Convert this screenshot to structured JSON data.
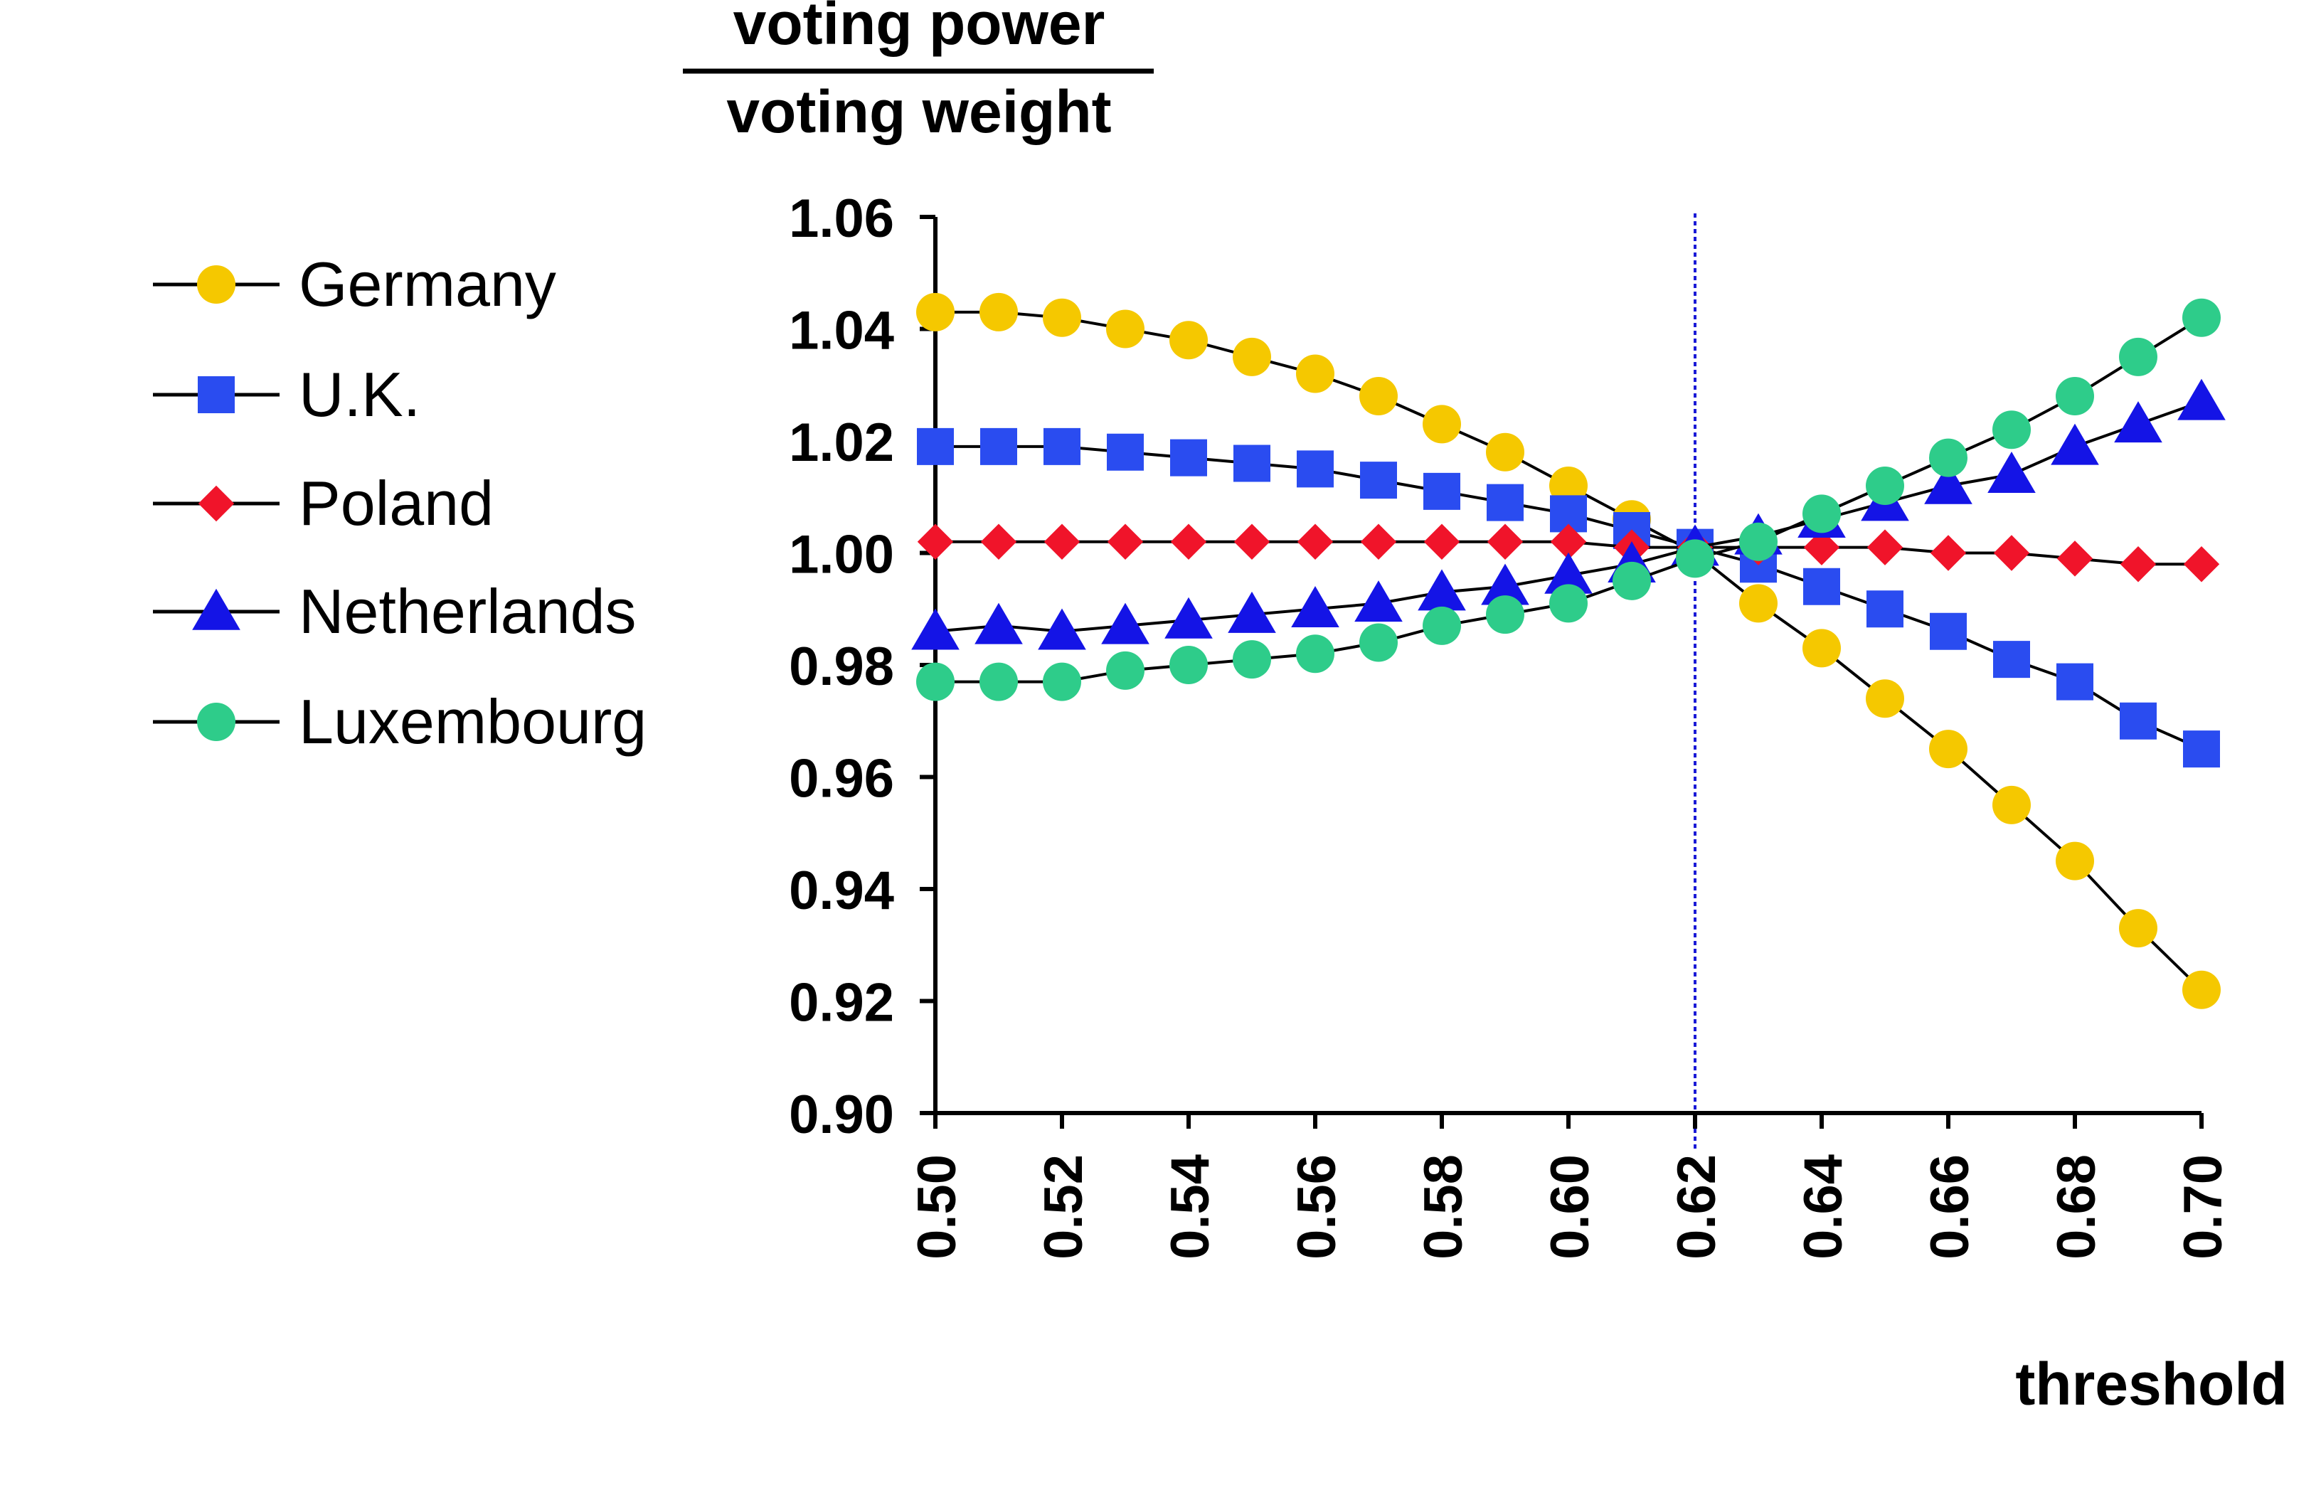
{
  "chart_data": {
    "type": "line",
    "ylabel_numerator": "voting power",
    "ylabel_denominator": "voting weight",
    "xlabel": "threshold",
    "xlim": [
      0.5,
      0.7
    ],
    "ylim": [
      0.9,
      1.06
    ],
    "x_ticks": [
      "0.50",
      "0.52",
      "0.54",
      "0.56",
      "0.58",
      "0.60",
      "0.62",
      "0.64",
      "0.66",
      "0.68",
      "0.70"
    ],
    "y_ticks": [
      "1.06",
      "1.04",
      "1.02",
      "1.00",
      "0.98",
      "0.96",
      "0.94",
      "0.92",
      "0.90"
    ],
    "reference_line": {
      "x": 0.62,
      "color": "#1a1ad6",
      "style": "dotted"
    },
    "grid": false,
    "legend_position": "left",
    "x": [
      0.5,
      0.51,
      0.52,
      0.53,
      0.54,
      0.55,
      0.56,
      0.57,
      0.58,
      0.59,
      0.6,
      0.61,
      0.62,
      0.63,
      0.64,
      0.65,
      0.66,
      0.67,
      0.68,
      0.69,
      0.7
    ],
    "series": [
      {
        "name": "Germany",
        "color": "#f5c800",
        "marker": "circle",
        "values": [
          1.043,
          1.043,
          1.042,
          1.04,
          1.038,
          1.035,
          1.032,
          1.028,
          1.023,
          1.018,
          1.012,
          1.006,
          1.0,
          0.991,
          0.983,
          0.974,
          0.965,
          0.955,
          0.945,
          0.933,
          0.922
        ]
      },
      {
        "name": "U.K.",
        "color": "#2a4cf0",
        "marker": "square",
        "values": [
          1.019,
          1.019,
          1.019,
          1.018,
          1.017,
          1.016,
          1.015,
          1.013,
          1.011,
          1.009,
          1.007,
          1.004,
          1.001,
          0.998,
          0.994,
          0.99,
          0.986,
          0.981,
          0.977,
          0.97,
          0.965
        ]
      },
      {
        "name": "Poland",
        "color": "#f0142a",
        "marker": "diamond",
        "values": [
          1.002,
          1.002,
          1.002,
          1.002,
          1.002,
          1.002,
          1.002,
          1.002,
          1.002,
          1.002,
          1.002,
          1.001,
          1.001,
          1.001,
          1.001,
          1.001,
          1.0,
          1.0,
          0.999,
          0.998,
          0.998
        ]
      },
      {
        "name": "Netherlands",
        "color": "#1414e6",
        "marker": "triangle",
        "values": [
          0.986,
          0.987,
          0.986,
          0.987,
          0.988,
          0.989,
          0.99,
          0.991,
          0.993,
          0.994,
          0.996,
          0.998,
          1.001,
          1.003,
          1.006,
          1.009,
          1.012,
          1.014,
          1.019,
          1.023,
          1.027
        ]
      },
      {
        "name": "Luxembourg",
        "color": "#2ecc8a",
        "marker": "circle",
        "values": [
          0.977,
          0.977,
          0.977,
          0.979,
          0.98,
          0.981,
          0.982,
          0.984,
          0.987,
          0.989,
          0.991,
          0.995,
          0.999,
          1.002,
          1.007,
          1.012,
          1.017,
          1.022,
          1.028,
          1.035,
          1.042
        ]
      }
    ]
  }
}
